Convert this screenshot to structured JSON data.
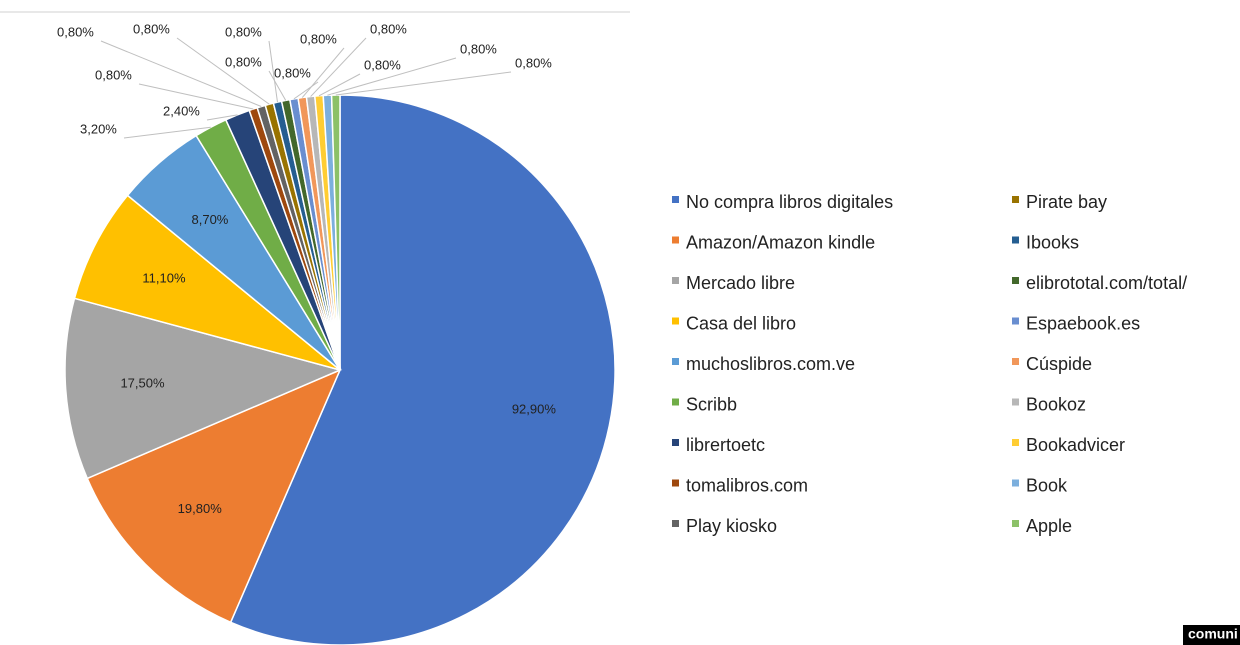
{
  "chart_data": {
    "type": "pie",
    "categories": [
      "No compra libros digitales",
      "Amazon/Amazon kindle",
      "Mercado libre",
      "Casa del libro",
      "muchoslibros.com.ve",
      "Scribb",
      "librertoetc",
      "tomalibros.com",
      "Play kiosko",
      "Pirate bay",
      "Ibooks",
      "elibrototal.com/total/",
      "Espaebook.es",
      "Cúspide",
      "Bookoz",
      "Bookadvicer",
      "Book",
      "Apple"
    ],
    "values": [
      92.9,
      19.8,
      17.5,
      11.1,
      8.7,
      3.2,
      2.4,
      0.8,
      0.8,
      0.8,
      0.8,
      0.8,
      0.8,
      0.8,
      0.8,
      0.8,
      0.8,
      0.8
    ],
    "value_labels": [
      "92,90%",
      "19,80%",
      "17,50%",
      "11,10%",
      "8,70%",
      "3,20%",
      "2,40%",
      "0,80%",
      "0,80%",
      "0,80%",
      "0,80%",
      "0,80%",
      "0,80%",
      "0,80%",
      "0,80%",
      "0,80%",
      "0,80%",
      "0,80%"
    ],
    "colors": [
      "#4472c4",
      "#ed7d31",
      "#a5a5a5",
      "#ffc000",
      "#5b9bd5",
      "#70ad47",
      "#264478",
      "#9e480e",
      "#636363",
      "#997300",
      "#255e91",
      "#43682b",
      "#698ed0",
      "#f1975a",
      "#b7b7b7",
      "#ffcd33",
      "#7cafdd",
      "#8cc168"
    ],
    "legend": "right"
  },
  "watermark": "comuni"
}
